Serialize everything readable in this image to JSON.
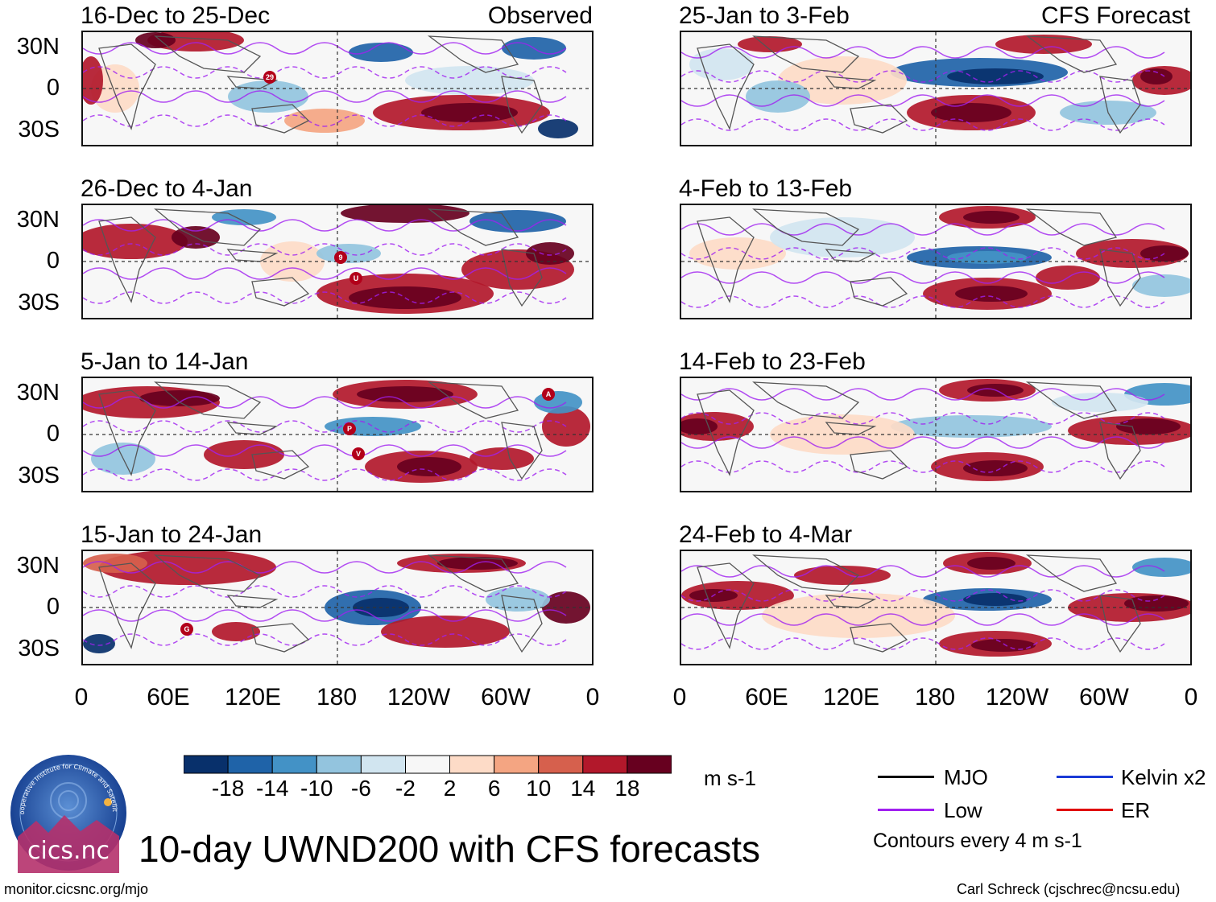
{
  "observed_label": "Observed",
  "forecast_label": "CFS Forecast",
  "panels_left": [
    {
      "title": "16-Dec to 25-Dec",
      "storms": [
        "29"
      ]
    },
    {
      "title": "26-Dec to 4-Jan",
      "storms": [
        "9",
        "U"
      ]
    },
    {
      "title": "5-Jan to 14-Jan",
      "storms": [
        "A",
        "P",
        "V"
      ]
    },
    {
      "title": "15-Jan to 24-Jan",
      "storms": [
        "G"
      ]
    }
  ],
  "panels_right": [
    {
      "title": "25-Jan to 3-Feb"
    },
    {
      "title": "4-Feb to 13-Feb"
    },
    {
      "title": "14-Feb to 23-Feb"
    },
    {
      "title": "24-Feb to 4-Mar"
    }
  ],
  "y_labels": [
    "30N",
    "0",
    "30S"
  ],
  "x_labels": [
    "0",
    "60E",
    "120E",
    "180",
    "120W",
    "60W",
    "0"
  ],
  "colorbar": {
    "colors": [
      "#08306b",
      "#1f63a8",
      "#4392c6",
      "#93c4de",
      "#d1e5f0",
      "#f7f7f7",
      "#fddbc7",
      "#f4a582",
      "#d6604d",
      "#b2182b",
      "#67001f"
    ],
    "labels": [
      "-18",
      "-14",
      "-10",
      "-6",
      "-2",
      "2",
      "6",
      "10",
      "14",
      "18"
    ],
    "units": "m s-1"
  },
  "legend": {
    "items": [
      {
        "label": "MJO",
        "color": "#000000"
      },
      {
        "label": "Kelvin x2",
        "color": "#1a3ad6"
      },
      {
        "label": "Low",
        "color": "#a020f0"
      },
      {
        "label": "ER",
        "color": "#e00000"
      }
    ],
    "note": "Contours every 4 m s-1"
  },
  "main_title": "10-day UWND200 with CFS forecasts",
  "logo_text": "cics.nc",
  "logo_ring_text": "Cooperative Institute for Climate and Satellites",
  "url": "monitor.cicsnc.org/mjo",
  "credit": "Carl Schreck (cjschrec@ncsu.edu)"
}
